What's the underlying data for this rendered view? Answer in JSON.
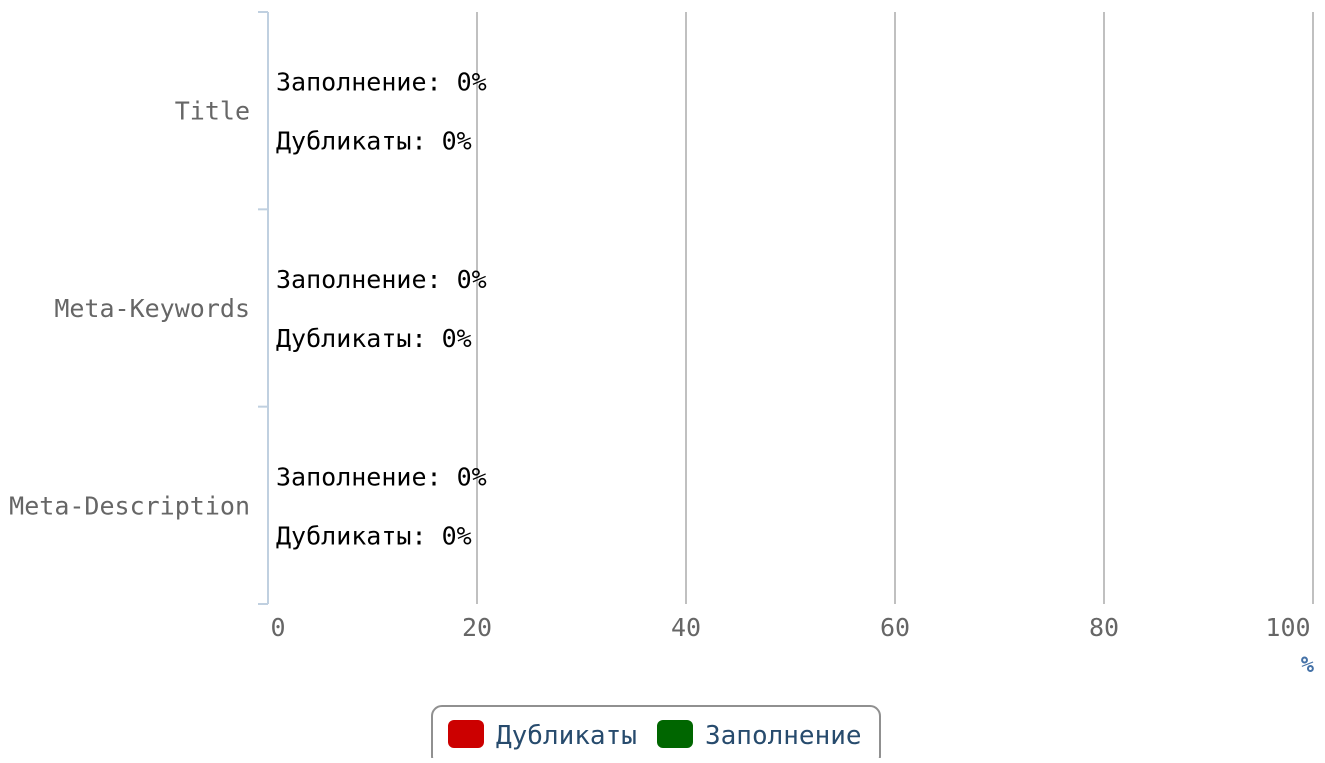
{
  "chart_data": {
    "type": "bar",
    "orientation": "horizontal",
    "categories": [
      "Title",
      "Meta-Keywords",
      "Meta-Description"
    ],
    "series": [
      {
        "name": "Заполнение",
        "label": "Заполнение",
        "color": "#006600",
        "values": [
          0,
          0,
          0
        ]
      },
      {
        "name": "Дубликаты",
        "label": "Дубликаты",
        "color": "#cc0000",
        "values": [
          0,
          0,
          0
        ]
      }
    ],
    "data_label_suffix": "%",
    "xaxis": {
      "ticks": [
        0,
        20,
        40,
        60,
        80,
        100
      ],
      "range": [
        0,
        100
      ],
      "unit": "%"
    },
    "grid": true,
    "legend": {
      "position": "bottom-center",
      "items": [
        {
          "name": "Дубликаты",
          "color": "#cc0000"
        },
        {
          "name": "Заполнение",
          "color": "#006600"
        }
      ]
    }
  }
}
